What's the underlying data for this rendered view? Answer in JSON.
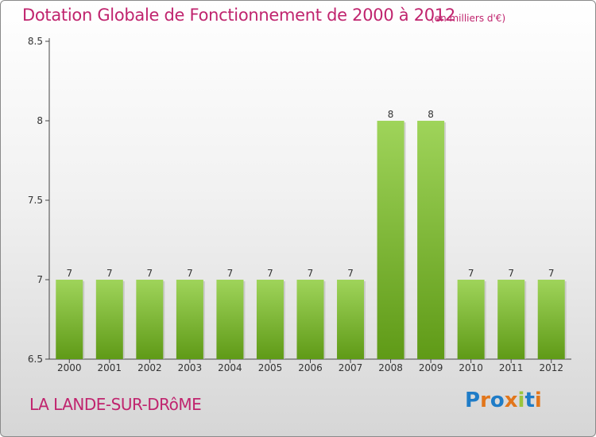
{
  "title": "Dotation Globale de Fonctionnement de 2000 à 2012",
  "unit_note": "(en milliers d'€)",
  "location": "LA LANDE-SUR-DRôME",
  "brand": "Proxiti",
  "colors": {
    "title": "#c0246e",
    "bar_top": "#9fd45a",
    "bar_bottom": "#5f9a17",
    "brand_letters": [
      "#1f7cc7",
      "#e2761b",
      "#1f7cc7",
      "#e2761b",
      "#9bc53d",
      "#1f7cc7",
      "#e2761b"
    ]
  },
  "chart_data": {
    "type": "bar",
    "title": "Dotation Globale de Fonctionnement de 2000 à 2012",
    "xlabel": "",
    "ylabel": "",
    "ylim": [
      6.5,
      8.5
    ],
    "yticks": [
      "6.5",
      "7",
      "7.5",
      "8",
      "8.5"
    ],
    "grid": false,
    "categories": [
      "2000",
      "2001",
      "2002",
      "2003",
      "2004",
      "2005",
      "2006",
      "2007",
      "2008",
      "2009",
      "2010",
      "2011",
      "2012"
    ],
    "values": [
      7,
      7,
      7,
      7,
      7,
      7,
      7,
      7,
      8,
      8,
      7,
      7,
      7
    ],
    "data_labels": [
      "7",
      "7",
      "7",
      "7",
      "7",
      "7",
      "7",
      "7",
      "8",
      "8",
      "7",
      "7",
      "7"
    ]
  }
}
